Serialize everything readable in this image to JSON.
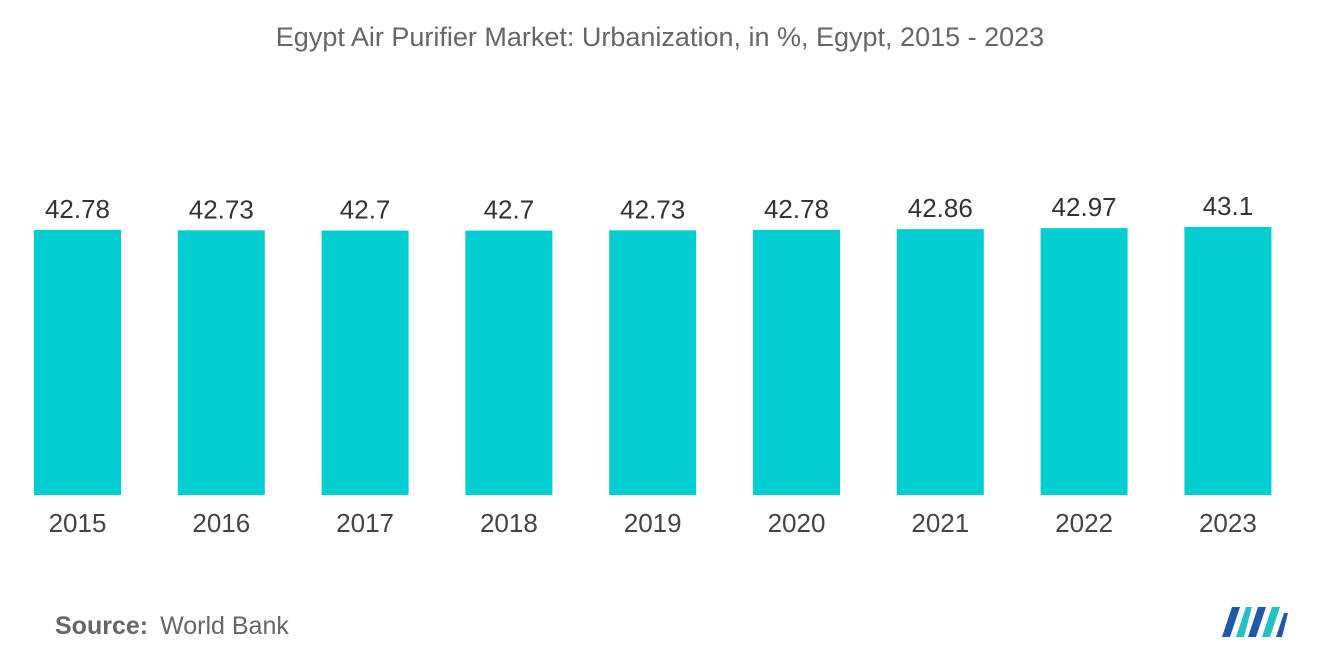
{
  "chart_data": {
    "type": "bar",
    "title": "Egypt Air Purifier Market: Urbanization, in %, Egypt, 2015 - 2023",
    "categories": [
      "2015",
      "2016",
      "2017",
      "2018",
      "2019",
      "2020",
      "2021",
      "2022",
      "2023"
    ],
    "values": [
      42.78,
      42.73,
      42.7,
      42.7,
      42.73,
      42.78,
      42.86,
      42.97,
      43.1
    ],
    "value_labels": [
      "42.78",
      "42.73",
      "42.7",
      "42.7",
      "42.73",
      "42.78",
      "42.86",
      "42.97",
      "43.1"
    ],
    "xlabel": "",
    "ylabel": "",
    "grid": false,
    "legend": "none",
    "bar_color": "#00CED1"
  },
  "source": {
    "label": "Source:",
    "value": "World Bank"
  },
  "logo": {
    "icon": "mordor-intelligence-logo-icon",
    "colors": [
      "#1e5aa8",
      "#22c1c3"
    ]
  }
}
